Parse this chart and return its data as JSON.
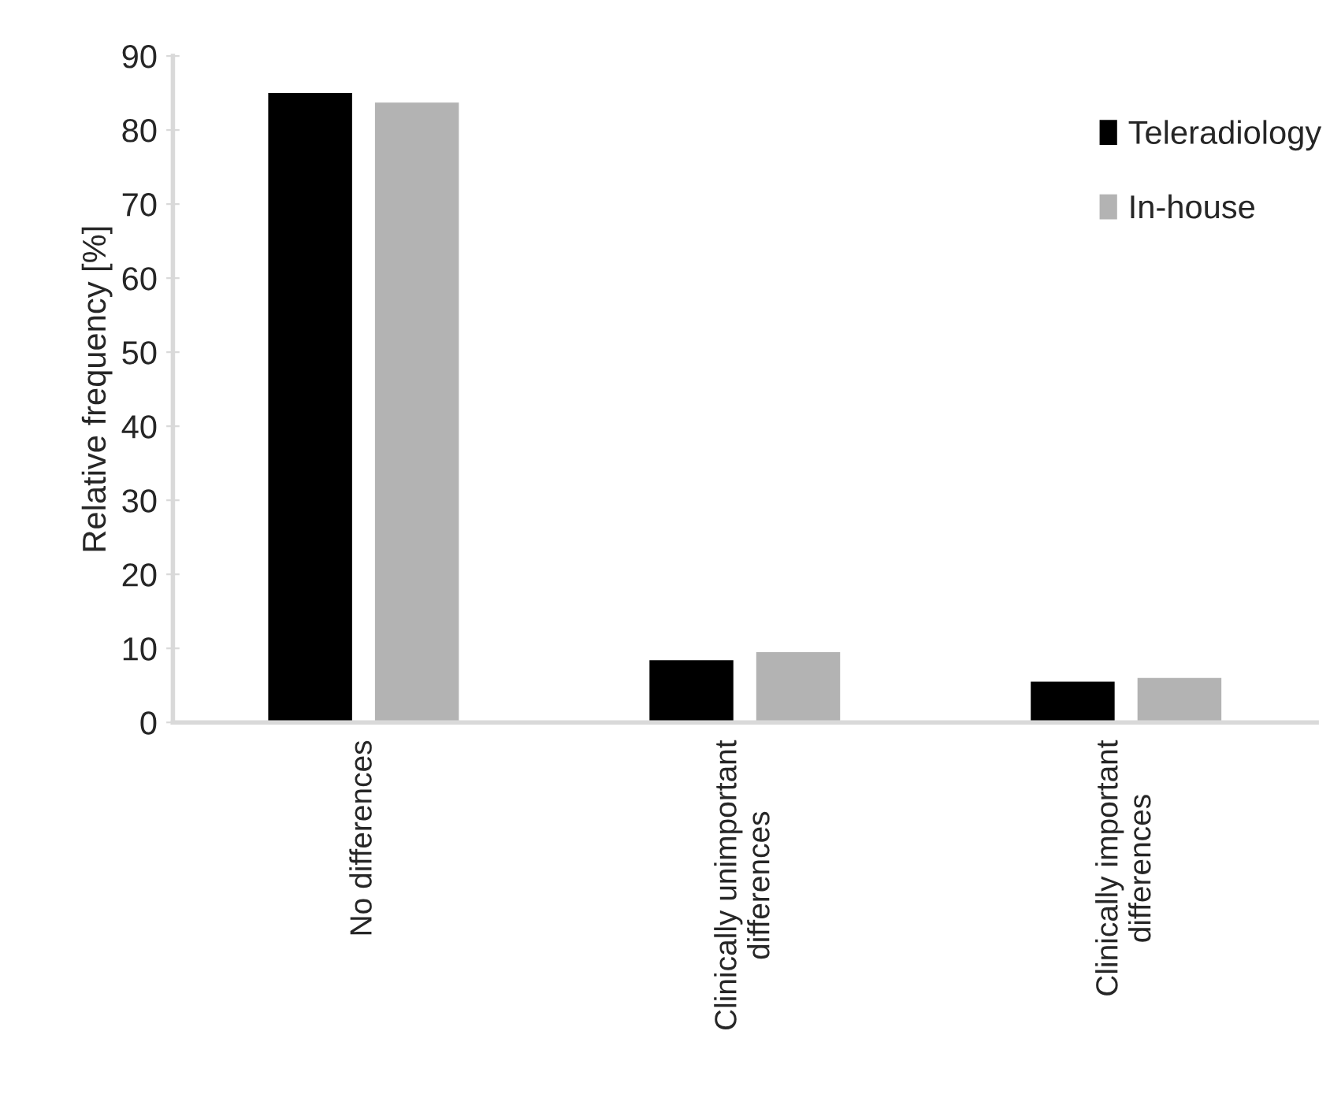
{
  "chart_data": {
    "type": "bar",
    "ylabel": "Relative frequency [%]",
    "categories": [
      "No differences",
      "Clinically unimportant differences",
      "Clinically important differences"
    ],
    "series": [
      {
        "name": "Teleradiology",
        "color": "#000000",
        "values": [
          85,
          8.4,
          5.5
        ]
      },
      {
        "name": "In-house",
        "color": "#b3b3b3",
        "values": [
          83.7,
          9.5,
          6.0
        ]
      }
    ],
    "ylim": [
      0,
      90
    ],
    "yticks": [
      0,
      10,
      20,
      30,
      40,
      50,
      60,
      70,
      80,
      90
    ],
    "grid": false,
    "legend": "top right"
  }
}
